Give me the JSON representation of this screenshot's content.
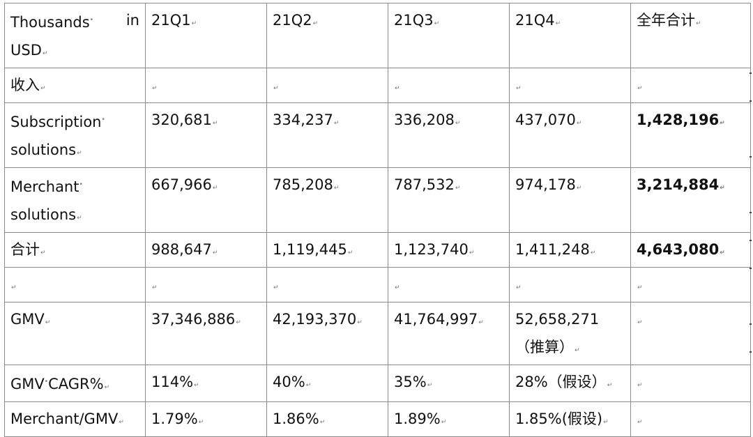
{
  "table": {
    "header": {
      "label_part1": "Thousands",
      "label_part2": "in",
      "label_part3": "USD",
      "q1": "21Q1",
      "q2": "21Q2",
      "q3": "21Q3",
      "q4": "21Q4",
      "total": "全年合计"
    },
    "rows": {
      "revenue_section": {
        "label": "收入"
      },
      "subscription": {
        "label_line1": "Subscription",
        "label_line2": "solutions",
        "q1": "320,681",
        "q2": "334,237",
        "q3": "336,208",
        "q4": "437,070",
        "total": "1,428,196"
      },
      "merchant": {
        "label_line1": "Merchant",
        "label_line2": "solutions",
        "q1": "667,966",
        "q2": "785,208",
        "q3": "787,532",
        "q4": "974,178",
        "total": "3,214,884"
      },
      "sum": {
        "label": "合计",
        "q1": "988,647",
        "q2": "1,119,445",
        "q3": "1,123,740",
        "q4": "1,411,248",
        "total": "4,643,080"
      },
      "gmv": {
        "label": "GMV",
        "q1": "37,346,886",
        "q2": "42,193,370",
        "q3": "41,764,997",
        "q4_line1": "52,658,271",
        "q4_line2": "（推算）"
      },
      "gmv_cagr": {
        "label_part1": "GMV",
        "label_part2": "CAGR%",
        "q1": "114%",
        "q2": "40%",
        "q3": "35%",
        "q4": "28%（假设）"
      },
      "merchant_gmv": {
        "label": "Merchant/GMV",
        "q1": "1.79%",
        "q2": "1.86%",
        "q3": "1.89%",
        "q4": "1.85%(假设)"
      }
    },
    "marks": {
      "return": "↵",
      "space": "•"
    }
  }
}
